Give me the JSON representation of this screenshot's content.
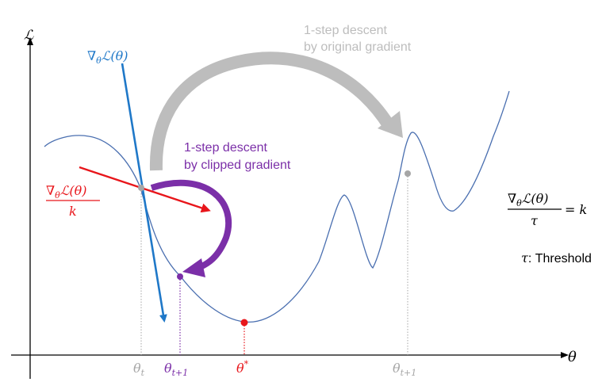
{
  "axes": {
    "y_label": "ℒ",
    "x_label": "θ"
  },
  "gradient_line": {
    "label": "∇θℒ(θ)",
    "label_main": "∇",
    "label_sub": "θ",
    "label_rest": "ℒ(θ)",
    "color": "#1f78c8"
  },
  "clipped_vector": {
    "numerator": "∇θℒ(θ)",
    "num_main": "∇",
    "num_sub": "θ",
    "num_rest": "ℒ(θ)",
    "denominator": "k",
    "color": "#e8161b"
  },
  "original_step": {
    "line1": "1-step descent",
    "line2": "by original gradient",
    "color": "#bdbdbd"
  },
  "clipped_step": {
    "line1": "1-step descent",
    "line2": "by clipped gradient",
    "color": "#7b2fa8"
  },
  "formula": {
    "num_main": "∇",
    "num_sub": "θ",
    "num_rest": "ℒ(θ)",
    "denominator": "τ",
    "rhs": "= k"
  },
  "threshold": {
    "symbol": "τ",
    "text": ": Threshold"
  },
  "x_ticks": {
    "theta_t": {
      "main": "θ",
      "sub": "t",
      "color": "#a6a6a6"
    },
    "theta_t1_clipped": {
      "main": "θ",
      "sub": "t+1",
      "color": "#7b2fa8"
    },
    "theta_star": {
      "main": "θ",
      "sup": "*",
      "color": "#e8161b"
    },
    "theta_t1_original": {
      "main": "θ",
      "sub": "t+1",
      "color": "#a6a6a6"
    }
  },
  "colors": {
    "curve": "#4a6fb0",
    "axis": "#000000",
    "guide": "#a6a6a6"
  }
}
